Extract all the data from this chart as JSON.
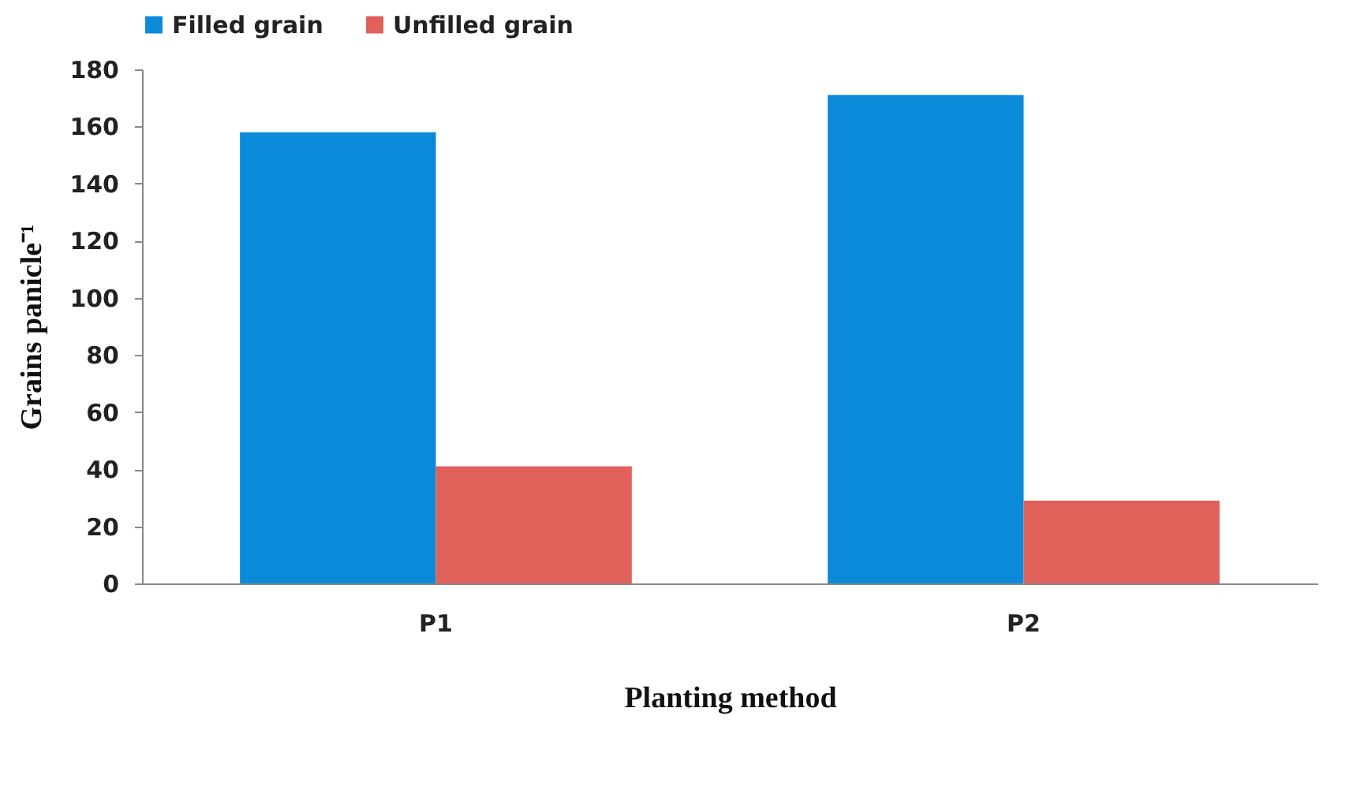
{
  "chart_data": {
    "type": "bar",
    "xlabel": "Planting method",
    "ylabel": "Grains panicle⁻¹",
    "categories": [
      "P1",
      "P2"
    ],
    "series": [
      {
        "name": "Filled grain",
        "color": "#0a8ad8",
        "values": [
          158,
          171
        ]
      },
      {
        "name": "Unfilled grain",
        "color": "#e0605a",
        "values": [
          41,
          29
        ]
      }
    ],
    "ylim": [
      0,
      180
    ],
    "yticks": [
      0,
      20,
      40,
      60,
      80,
      100,
      120,
      140,
      160,
      180
    ],
    "grid": false,
    "legend": "top"
  }
}
